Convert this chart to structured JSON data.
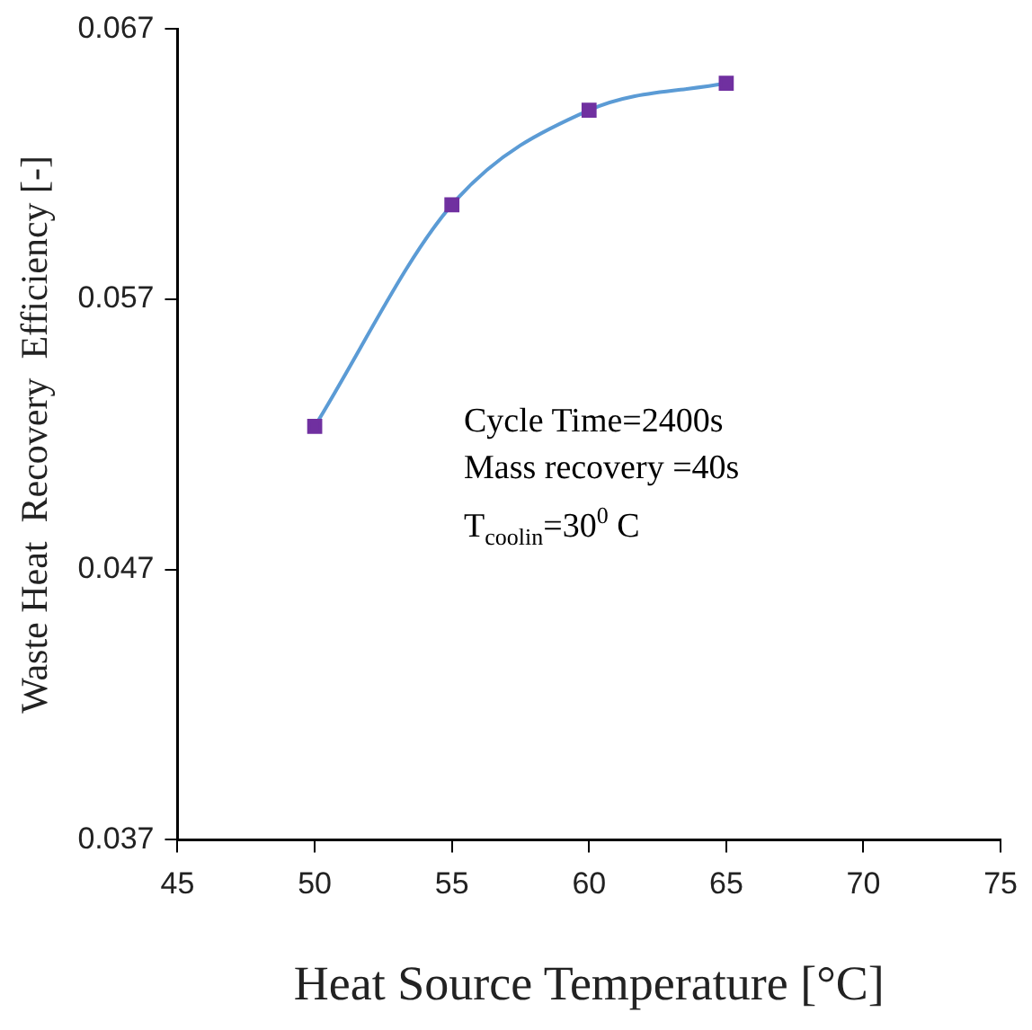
{
  "chart_data": {
    "type": "line",
    "xlabel": "Heat Source Temperature [°C]",
    "ylabel": "Waste Heat  Recovery  Efficiency [-]",
    "x": [
      50,
      55,
      60,
      65
    ],
    "series": [
      {
        "color": "#5b9bd5",
        "values": [
          0.0523,
          0.0605,
          0.064,
          0.065
        ]
      }
    ],
    "marker": "square",
    "line_style": "solid",
    "grid": false,
    "legend": false,
    "xlim": [
      45,
      75
    ],
    "xticks": [
      45,
      50,
      55,
      60,
      65,
      70,
      75
    ],
    "ylim": [
      0.037,
      0.067
    ],
    "yticks": [
      0.037,
      0.047,
      0.057,
      0.067
    ],
    "annotations": [
      "Cycle Time=2400s",
      "Mass recovery =40s",
      "T$_{coolin}$=30$^{0}$ C"
    ]
  }
}
